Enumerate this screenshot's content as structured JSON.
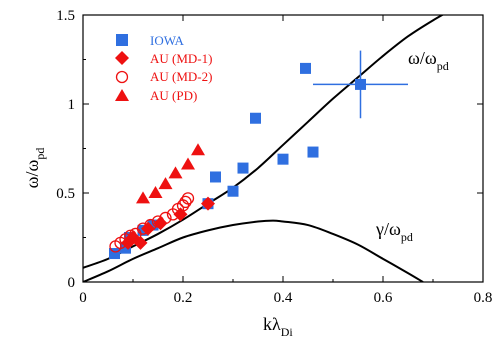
{
  "chart_data": {
    "type": "scatter",
    "xlim": [
      0,
      0.8
    ],
    "ylim": [
      0,
      1.5
    ],
    "x_ticks": [
      0,
      0.2,
      0.4,
      0.6,
      0.8
    ],
    "x_tick_labels": [
      "0",
      "0.2",
      "0.4",
      "0.6",
      "0.8"
    ],
    "y_ticks": [
      0,
      0.5,
      1,
      1.5
    ],
    "y_tick_labels": [
      "0",
      "0.5",
      "1",
      "1.5"
    ],
    "xlabel": {
      "main": "kλ",
      "sub": "Di"
    },
    "ylabel": {
      "main": "ω/ω",
      "sub": "pd"
    },
    "grid": false,
    "legend_position": "top-left",
    "series": [
      {
        "name": "IOWA",
        "marker": "square",
        "color": "#2f6fe0",
        "x": [
          0.063,
          0.085,
          0.093,
          0.12,
          0.14,
          0.25,
          0.265,
          0.3,
          0.32,
          0.345,
          0.4,
          0.445,
          0.46
        ],
        "y": [
          0.16,
          0.19,
          0.25,
          0.29,
          0.32,
          0.44,
          0.59,
          0.51,
          0.64,
          0.92,
          0.69,
          1.2,
          0.73
        ]
      },
      {
        "name": "AU (MD-1)",
        "marker": "diamond",
        "color": "#ee1111",
        "x": [
          0.09,
          0.1,
          0.115,
          0.13,
          0.155,
          0.195,
          0.25
        ],
        "y": [
          0.22,
          0.25,
          0.22,
          0.3,
          0.33,
          0.38,
          0.44
        ]
      },
      {
        "name": "AU (MD-2)",
        "marker": "circle-open",
        "color": "#ee1111",
        "x": [
          0.065,
          0.075,
          0.085,
          0.095,
          0.105,
          0.12,
          0.135,
          0.15,
          0.165,
          0.18,
          0.19,
          0.2,
          0.205,
          0.21
        ],
        "y": [
          0.2,
          0.22,
          0.24,
          0.26,
          0.27,
          0.3,
          0.32,
          0.34,
          0.36,
          0.38,
          0.41,
          0.43,
          0.45,
          0.47
        ]
      },
      {
        "name": "AU (PD)",
        "marker": "triangle",
        "color": "#ee1111",
        "x": [
          0.12,
          0.145,
          0.165,
          0.185,
          0.21,
          0.23
        ],
        "y": [
          0.47,
          0.5,
          0.55,
          0.61,
          0.66,
          0.74
        ]
      }
    ],
    "error_bar": {
      "color": "#2f6fe0",
      "x": 0.555,
      "y": 1.11,
      "x_range": [
        0.46,
        0.65
      ],
      "y_range": [
        0.92,
        1.3
      ]
    },
    "curves": [
      {
        "label_main": "ω/ω",
        "label_sub": "pd",
        "x": [
          0.0,
          0.05,
          0.1,
          0.15,
          0.2,
          0.25,
          0.3,
          0.35,
          0.4,
          0.45,
          0.5,
          0.55,
          0.6,
          0.65,
          0.7,
          0.75
        ],
        "y": [
          0.08,
          0.13,
          0.2,
          0.27,
          0.35,
          0.44,
          0.53,
          0.64,
          0.77,
          0.9,
          1.03,
          1.15,
          1.27,
          1.38,
          1.47,
          1.55
        ]
      },
      {
        "label_main": "γ/ω",
        "label_sub": "pd",
        "x": [
          0.0,
          0.05,
          0.1,
          0.15,
          0.2,
          0.25,
          0.3,
          0.35,
          0.38,
          0.4,
          0.45,
          0.5,
          0.55,
          0.6,
          0.65,
          0.68
        ],
        "y": [
          0.0,
          0.06,
          0.13,
          0.19,
          0.25,
          0.29,
          0.32,
          0.34,
          0.345,
          0.34,
          0.32,
          0.27,
          0.21,
          0.13,
          0.05,
          0.0
        ]
      }
    ]
  }
}
